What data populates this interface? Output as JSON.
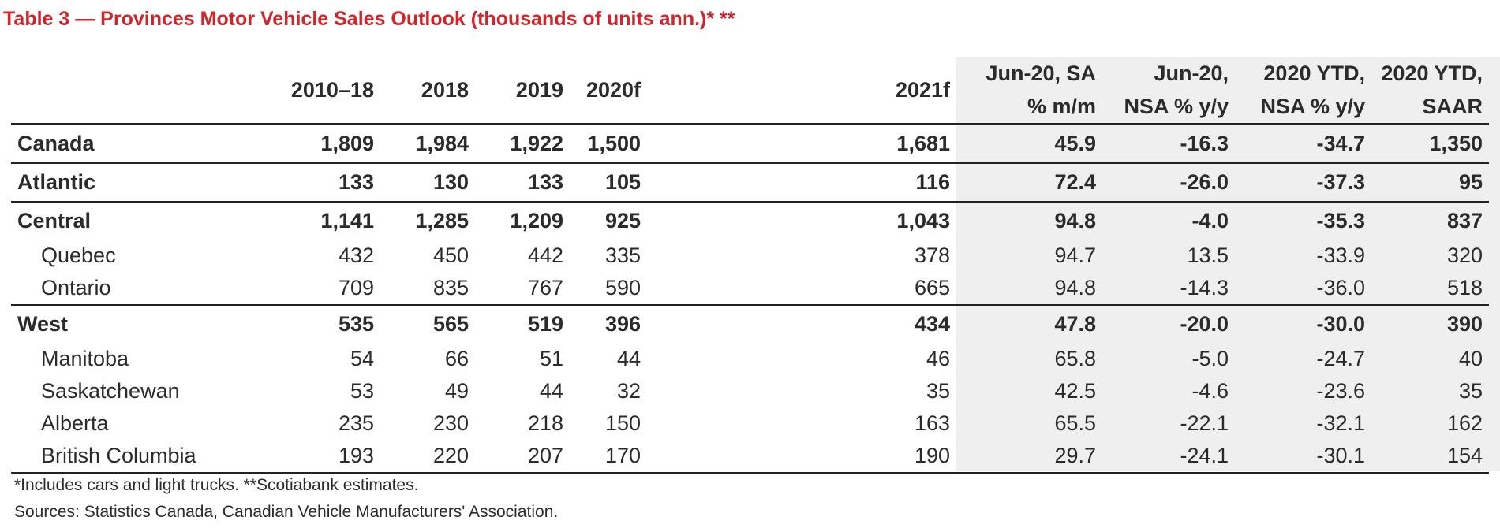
{
  "title": "Table 3 — Provinces Motor Vehicle Sales Outlook (thousands of units ann.)* **",
  "columns": [
    {
      "line1": "2010–18",
      "line2": ""
    },
    {
      "line1": "2018",
      "line2": ""
    },
    {
      "line1": "2019",
      "line2": ""
    },
    {
      "line1": "2020f",
      "line2": ""
    },
    {
      "line1": "2021f",
      "line2": ""
    },
    {
      "line1": "Jun-20, SA",
      "line2": "% m/m"
    },
    {
      "line1": "Jun-20,",
      "line2": "NSA % y/y"
    },
    {
      "line1": "2020 YTD,",
      "line2": "NSA % y/y"
    },
    {
      "line1": "2020 YTD,",
      "line2": "SAAR"
    }
  ],
  "rows": [
    {
      "label": "Canada",
      "values": [
        "1,809",
        "1,984",
        "1,922",
        "1,500",
        "1,681",
        "45.9",
        "-16.3",
        "-34.7",
        "1,350"
      ]
    },
    {
      "label": "Atlantic",
      "values": [
        "133",
        "130",
        "133",
        "105",
        "116",
        "72.4",
        "-26.0",
        "-37.3",
        "95"
      ]
    },
    {
      "label": "Central",
      "values": [
        "1,141",
        "1,285",
        "1,209",
        "925",
        "1,043",
        "94.8",
        "-4.0",
        "-35.3",
        "837"
      ]
    },
    {
      "label": "Quebec",
      "values": [
        "432",
        "450",
        "442",
        "335",
        "378",
        "94.7",
        "13.5",
        "-33.9",
        "320"
      ]
    },
    {
      "label": "Ontario",
      "values": [
        "709",
        "835",
        "767",
        "590",
        "665",
        "94.8",
        "-14.3",
        "-36.0",
        "518"
      ]
    },
    {
      "label": "West",
      "values": [
        "535",
        "565",
        "519",
        "396",
        "434",
        "47.8",
        "-20.0",
        "-30.0",
        "390"
      ]
    },
    {
      "label": "Manitoba",
      "values": [
        "54",
        "66",
        "51",
        "44",
        "46",
        "65.8",
        "-5.0",
        "-24.7",
        "40"
      ]
    },
    {
      "label": "Saskatchewan",
      "values": [
        "53",
        "49",
        "44",
        "32",
        "35",
        "42.5",
        "-4.6",
        "-23.6",
        "35"
      ]
    },
    {
      "label": "Alberta",
      "values": [
        "235",
        "230",
        "218",
        "150",
        "163",
        "65.5",
        "-22.1",
        "-32.1",
        "162"
      ]
    },
    {
      "label": "British Columbia",
      "values": [
        "193",
        "220",
        "207",
        "170",
        "190",
        "29.7",
        "-24.1",
        "-30.1",
        "154"
      ]
    }
  ],
  "footnotes": {
    "note": "*Includes cars and light trucks. **Scotiabank estimates.",
    "sources": "Sources: Statistics Canada, Canadian Vehicle Manufacturers' Association."
  },
  "colors": {
    "title": "#d1252b",
    "shaded_columns": "#efefef",
    "rules": "#222222"
  }
}
